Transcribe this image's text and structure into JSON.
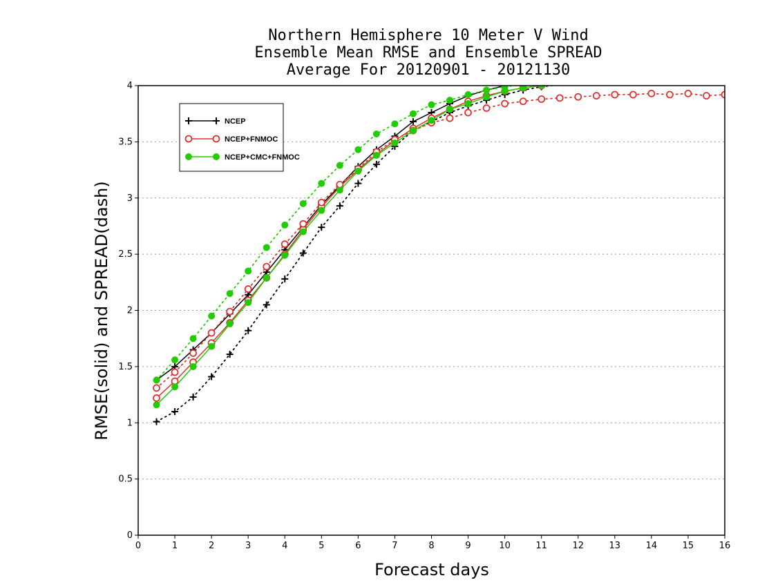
{
  "chart_data": {
    "type": "line",
    "title": [
      "Northern Hemisphere 10 Meter V Wind",
      "Ensemble Mean RMSE and Ensemble SPREAD",
      "Average For 20120901 - 20121130"
    ],
    "xlabel": "Forecast days",
    "ylabel": "RMSE(solid) and SPREAD(dash)",
    "xlim": [
      0,
      16
    ],
    "ylim": [
      0,
      4
    ],
    "x_ticks": [
      "0",
      "1",
      "2",
      "3",
      "4",
      "5",
      "6",
      "7",
      "8",
      "9",
      "10",
      "11",
      "12",
      "13",
      "14",
      "15",
      "16"
    ],
    "y_ticks": [
      "0",
      "0.5",
      "1",
      "1.5",
      "2",
      "2.5",
      "3",
      "3.5",
      "4"
    ],
    "grid": "horizontal dotted",
    "legend_position": "top-left",
    "x": [
      0.5,
      1,
      1.5,
      2,
      2.5,
      3,
      3.5,
      4,
      4.5,
      5,
      5.5,
      6,
      6.5,
      7,
      7.5,
      8,
      8.5,
      9,
      9.5,
      10,
      10.5,
      11,
      11.5,
      12,
      12.5,
      13,
      13.5,
      14,
      14.5,
      15,
      15.5,
      16
    ],
    "series": [
      {
        "name": "NCEP",
        "color": "#000000",
        "marker": "plus",
        "rmse": [
          1.38,
          1.5,
          1.65,
          1.8,
          1.97,
          2.14,
          2.34,
          2.54,
          2.74,
          2.94,
          3.11,
          3.28,
          3.43,
          3.55,
          3.68,
          3.76,
          3.84,
          3.91,
          3.96,
          4.0,
          4.02,
          4.03,
          4.03,
          4.02,
          4.02,
          4.02,
          4.02,
          4.02,
          4.02,
          4.02,
          4.02,
          4.02
        ],
        "spread": [
          1.01,
          1.1,
          1.23,
          1.41,
          1.61,
          1.82,
          2.05,
          2.28,
          2.51,
          2.74,
          2.93,
          3.13,
          3.3,
          3.46,
          3.6,
          3.68,
          3.76,
          3.82,
          3.87,
          3.92,
          3.96,
          3.99,
          4.01,
          4.02,
          4.02,
          4.02,
          4.02,
          4.02,
          4.02,
          4.02,
          4.02,
          4.02
        ]
      },
      {
        "name": "NCEP+FNMOC",
        "color": "#e03030",
        "marker": "open-circle",
        "rmse": [
          1.22,
          1.37,
          1.54,
          1.71,
          1.89,
          2.09,
          2.29,
          2.5,
          2.72,
          2.92,
          3.1,
          3.25,
          3.39,
          3.51,
          3.62,
          3.71,
          3.79,
          3.86,
          3.91,
          3.95,
          3.98,
          4.0,
          4.02,
          4.02,
          4.02,
          4.02,
          4.02,
          4.02,
          4.02,
          4.02,
          4.02,
          4.02
        ],
        "spread": [
          1.31,
          1.45,
          1.62,
          1.8,
          1.99,
          2.19,
          2.39,
          2.59,
          2.77,
          2.96,
          3.12,
          3.26,
          3.41,
          3.52,
          3.6,
          3.67,
          3.71,
          3.76,
          3.8,
          3.84,
          3.86,
          3.88,
          3.89,
          3.9,
          3.91,
          3.92,
          3.92,
          3.93,
          3.92,
          3.93,
          3.91,
          3.92
        ]
      },
      {
        "name": "NCEP+CMC+FNMOC",
        "color": "#22cc00",
        "marker": "filled-circle",
        "rmse": [
          1.16,
          1.32,
          1.5,
          1.68,
          1.88,
          2.07,
          2.29,
          2.49,
          2.7,
          2.89,
          3.07,
          3.24,
          3.38,
          3.49,
          3.6,
          3.69,
          3.79,
          3.84,
          3.9,
          3.95,
          3.98,
          4.0,
          4.02,
          4.02,
          4.02,
          4.02,
          4.02,
          4.02,
          4.02,
          4.02,
          4.02,
          4.02
        ],
        "spread": [
          1.38,
          1.56,
          1.75,
          1.95,
          2.15,
          2.35,
          2.56,
          2.76,
          2.95,
          3.13,
          3.29,
          3.43,
          3.57,
          3.66,
          3.75,
          3.83,
          3.87,
          3.92,
          3.96,
          3.99,
          4.01,
          4.02,
          4.02,
          4.02,
          4.02,
          4.02,
          4.02,
          4.02,
          4.02,
          4.02,
          4.02,
          4.02
        ]
      }
    ]
  }
}
